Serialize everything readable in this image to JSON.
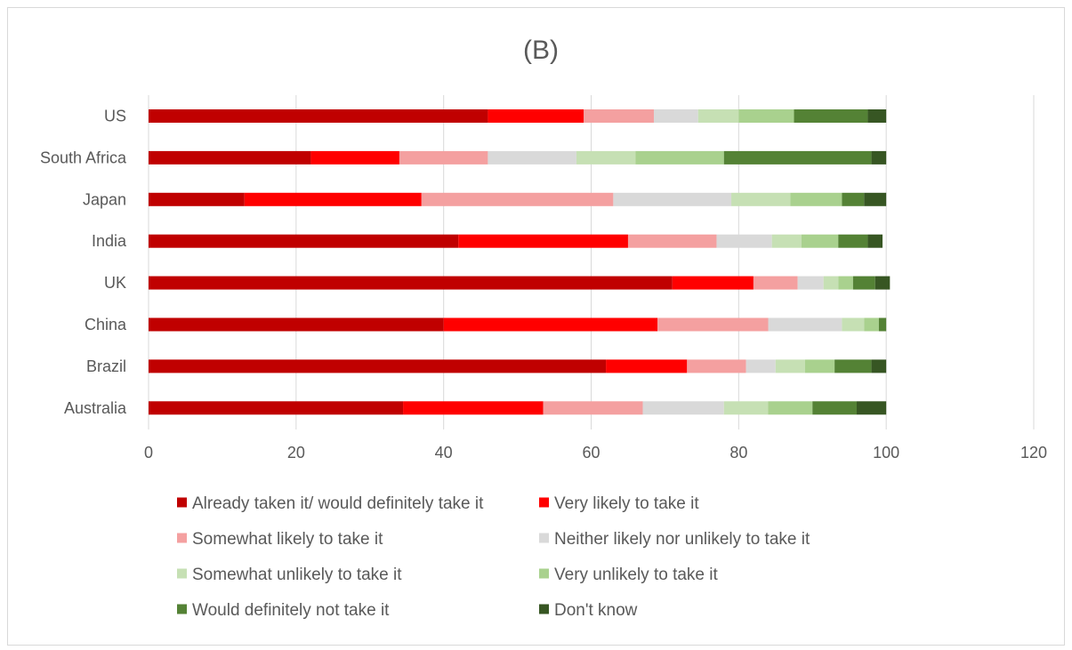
{
  "chart_data": {
    "type": "bar",
    "orientation": "horizontal",
    "stacked": true,
    "title": "(B)",
    "xlim": [
      0,
      120
    ],
    "x_ticks": [
      "0",
      "20",
      "40",
      "60",
      "80",
      "100",
      "120"
    ],
    "grid": true,
    "legend_position": "bottom",
    "categories": [
      "US",
      "South Africa",
      "Japan",
      "India",
      "UK",
      "China",
      "Brazil",
      "Australia"
    ],
    "series": [
      {
        "name": "Already taken it/ would definitely take it",
        "color": "#c00000",
        "values": [
          46,
          22,
          13,
          42,
          71,
          40,
          62,
          34.5
        ]
      },
      {
        "name": "Very likely to take it",
        "color": "#ff0000",
        "values": [
          13,
          12,
          24,
          23,
          11,
          29,
          11,
          19
        ]
      },
      {
        "name": "Somewhat likely to take it",
        "color": "#f4a0a0",
        "values": [
          9.5,
          12,
          26,
          12,
          6,
          15,
          8,
          13.5
        ]
      },
      {
        "name": "Neither likely nor unlikely to take it",
        "color": "#d9d9d9",
        "values": [
          6,
          12,
          16,
          7.5,
          3.5,
          10,
          4,
          11
        ]
      },
      {
        "name": "Somewhat unlikely to take it",
        "color": "#c6e0b4",
        "values": [
          5.5,
          8,
          8,
          4,
          2,
          3,
          4,
          6
        ]
      },
      {
        "name": "Very unlikely to take it",
        "color": "#a9d18e",
        "values": [
          7.5,
          12,
          7,
          5,
          2,
          2,
          4,
          6
        ]
      },
      {
        "name": "Would definitely not take it",
        "color": "#548235",
        "values": [
          10,
          20,
          3,
          4,
          3,
          1,
          5,
          6
        ]
      },
      {
        "name": "Don't know",
        "color": "#375623",
        "values": [
          2.5,
          2,
          3,
          2,
          2,
          0,
          2,
          4
        ]
      }
    ]
  }
}
